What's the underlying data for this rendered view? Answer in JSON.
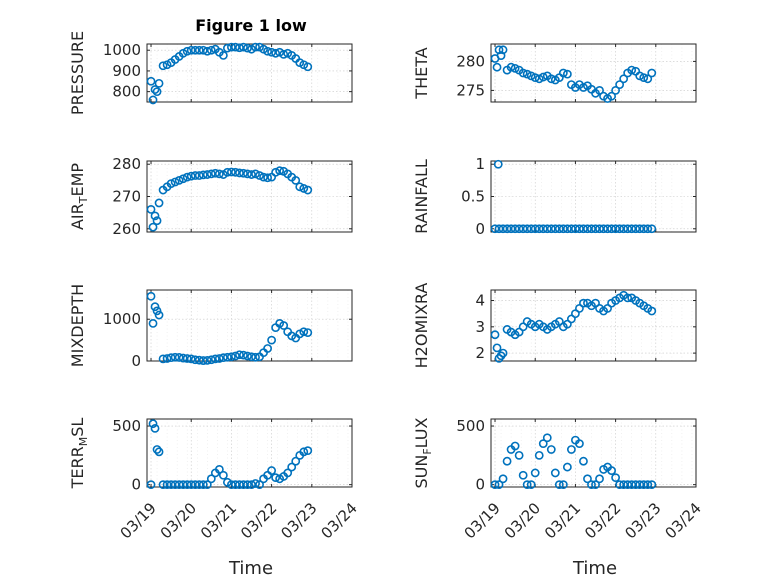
{
  "figure": {
    "title": "Figure 1 low",
    "xlabel": "Time"
  },
  "chart_data": [
    {
      "id": "pressure",
      "type": "scatter",
      "ylabel": "PRESSURE",
      "yticks": [
        "800",
        "900",
        "1000"
      ],
      "ytick_values": [
        800,
        900,
        1000
      ],
      "ylim": [
        750,
        1030
      ],
      "x": [
        0,
        0.05,
        0.1,
        0.15,
        0.2,
        0.3,
        0.4,
        0.5,
        0.6,
        0.7,
        0.8,
        0.9,
        1.0,
        1.1,
        1.2,
        1.3,
        1.4,
        1.5,
        1.6,
        1.7,
        1.8,
        1.9,
        2.0,
        2.1,
        2.2,
        2.3,
        2.4,
        2.5,
        2.6,
        2.7,
        2.8,
        2.9,
        3.0,
        3.1,
        3.2,
        3.3,
        3.4,
        3.5,
        3.6,
        3.7,
        3.8,
        3.9
      ],
      "y": [
        850,
        760,
        810,
        800,
        840,
        925,
        930,
        940,
        955,
        970,
        985,
        995,
        1000,
        1000,
        1000,
        1000,
        995,
        1000,
        1005,
        990,
        975,
        1010,
        1015,
        1015,
        1012,
        1015,
        1010,
        1005,
        1015,
        1015,
        1005,
        995,
        990,
        985,
        990,
        980,
        985,
        975,
        960,
        940,
        930,
        920
      ]
    },
    {
      "id": "theta",
      "type": "scatter",
      "ylabel": "THETA",
      "yticks": [
        "275",
        "280"
      ],
      "ytick_values": [
        275,
        280
      ],
      "ylim": [
        273,
        283
      ],
      "x": [
        0,
        0.05,
        0.1,
        0.15,
        0.2,
        0.3,
        0.4,
        0.5,
        0.6,
        0.7,
        0.8,
        0.9,
        1.0,
        1.1,
        1.2,
        1.3,
        1.4,
        1.5,
        1.6,
        1.7,
        1.8,
        1.9,
        2.0,
        2.1,
        2.2,
        2.3,
        2.4,
        2.5,
        2.6,
        2.7,
        2.8,
        2.9,
        3.0,
        3.1,
        3.2,
        3.3,
        3.4,
        3.5,
        3.6,
        3.7,
        3.8,
        3.9
      ],
      "y": [
        280.5,
        279,
        282,
        281,
        282,
        278.5,
        279,
        278.8,
        278.5,
        278,
        277.8,
        277.5,
        277.2,
        277,
        277.3,
        277.5,
        277,
        276.8,
        277.2,
        278,
        277.8,
        276,
        275.5,
        276,
        275.5,
        275.8,
        275.2,
        274.5,
        275,
        274,
        273.6,
        274,
        275,
        276,
        277,
        278,
        278.5,
        278.3,
        277.5,
        277.2,
        277,
        278
      ]
    },
    {
      "id": "air_temp",
      "type": "scatter",
      "ylabel": "AIRTEMP",
      "ylabel_main": "AIR",
      "ylabel_sub": "T",
      "ylabel_rest": "EMP",
      "yticks": [
        "260",
        "270",
        "280"
      ],
      "ytick_values": [
        260,
        270,
        280
      ],
      "ylim": [
        259,
        281
      ],
      "x": [
        0,
        0.05,
        0.1,
        0.15,
        0.2,
        0.3,
        0.4,
        0.5,
        0.6,
        0.7,
        0.8,
        0.9,
        1.0,
        1.1,
        1.2,
        1.3,
        1.4,
        1.5,
        1.6,
        1.7,
        1.8,
        1.9,
        2.0,
        2.1,
        2.2,
        2.3,
        2.4,
        2.5,
        2.6,
        2.7,
        2.8,
        2.9,
        3.0,
        3.1,
        3.2,
        3.3,
        3.4,
        3.5,
        3.6,
        3.7,
        3.8,
        3.9
      ],
      "y": [
        266,
        260.5,
        264,
        262.5,
        268,
        272,
        273,
        274,
        274.5,
        275,
        275.5,
        276,
        276.3,
        276.5,
        276.5,
        276.7,
        276.8,
        277,
        277.2,
        277,
        276.8,
        277.5,
        277.6,
        277.5,
        277.3,
        277.2,
        277,
        276.8,
        277,
        276.5,
        276,
        275.8,
        276,
        277.5,
        278,
        277.8,
        277,
        276,
        275,
        273,
        272.5,
        272
      ]
    },
    {
      "id": "rainfall",
      "type": "scatter",
      "ylabel": "RAINFALL",
      "yticks": [
        "0",
        "0.5",
        "1"
      ],
      "ytick_values": [
        0,
        0.5,
        1
      ],
      "ylim": [
        -0.05,
        1.05
      ],
      "x": [
        0,
        0.1,
        0.2,
        0.3,
        0.4,
        0.5,
        0.6,
        0.7,
        0.8,
        0.9,
        1.0,
        1.1,
        1.2,
        1.3,
        1.4,
        1.5,
        1.6,
        1.7,
        1.8,
        1.9,
        2.0,
        2.1,
        2.2,
        2.3,
        2.4,
        2.5,
        2.6,
        2.7,
        2.8,
        2.9,
        3.0,
        3.1,
        3.2,
        3.3,
        3.4,
        3.5,
        3.6,
        3.7,
        3.8,
        3.9,
        0.08
      ],
      "y": [
        0,
        0,
        0,
        0,
        0,
        0,
        0,
        0,
        0,
        0,
        0,
        0,
        0,
        0,
        0,
        0,
        0,
        0,
        0,
        0,
        0,
        0,
        0,
        0,
        0,
        0,
        0,
        0,
        0,
        0,
        0,
        0,
        0,
        0,
        0,
        0,
        0,
        0,
        0,
        0,
        1
      ]
    },
    {
      "id": "mixdepth",
      "type": "scatter",
      "ylabel": "MIXDEPTH",
      "yticks": [
        "0",
        "1000"
      ],
      "ytick_values": [
        0,
        1000
      ],
      "ylim": [
        0,
        1700
      ],
      "x": [
        0,
        0.05,
        0.1,
        0.15,
        0.2,
        0.3,
        0.4,
        0.5,
        0.6,
        0.7,
        0.8,
        0.9,
        1.0,
        1.1,
        1.2,
        1.3,
        1.4,
        1.5,
        1.6,
        1.7,
        1.8,
        1.9,
        2.0,
        2.1,
        2.2,
        2.3,
        2.4,
        2.5,
        2.6,
        2.7,
        2.8,
        2.9,
        3.0,
        3.1,
        3.2,
        3.3,
        3.4,
        3.5,
        3.6,
        3.7,
        3.8,
        3.9
      ],
      "y": [
        1550,
        900,
        1300,
        1200,
        1100,
        50,
        60,
        80,
        90,
        85,
        70,
        60,
        50,
        30,
        20,
        10,
        15,
        30,
        50,
        60,
        80,
        90,
        100,
        120,
        150,
        140,
        120,
        100,
        90,
        100,
        200,
        300,
        500,
        800,
        900,
        850,
        700,
        600,
        550,
        650,
        700,
        680
      ]
    },
    {
      "id": "h2omixra",
      "type": "scatter",
      "ylabel": "H2OMIXRA",
      "yticks": [
        "2",
        "3",
        "4"
      ],
      "ytick_values": [
        2,
        3,
        4
      ],
      "ylim": [
        1.7,
        4.4
      ],
      "x": [
        0,
        0.05,
        0.1,
        0.15,
        0.2,
        0.3,
        0.4,
        0.5,
        0.6,
        0.7,
        0.8,
        0.9,
        1.0,
        1.1,
        1.2,
        1.3,
        1.4,
        1.5,
        1.6,
        1.7,
        1.8,
        1.9,
        2.0,
        2.1,
        2.2,
        2.3,
        2.4,
        2.5,
        2.6,
        2.7,
        2.8,
        2.9,
        3.0,
        3.1,
        3.2,
        3.3,
        3.4,
        3.5,
        3.6,
        3.7,
        3.8,
        3.9
      ],
      "y": [
        2.7,
        2.2,
        1.8,
        1.9,
        2.0,
        2.9,
        2.8,
        2.7,
        2.8,
        3.0,
        3.2,
        3.1,
        3.0,
        3.1,
        3.0,
        2.9,
        3.0,
        3.1,
        3.2,
        3.0,
        3.1,
        3.3,
        3.5,
        3.7,
        3.9,
        3.9,
        3.8,
        3.9,
        3.7,
        3.6,
        3.7,
        3.9,
        4.0,
        4.1,
        4.2,
        4.1,
        4.1,
        4.0,
        3.9,
        3.8,
        3.7,
        3.6
      ]
    },
    {
      "id": "terr_msl",
      "type": "scatter",
      "ylabel": "TERRMSL",
      "ylabel_main": "TERR",
      "ylabel_sub": "M",
      "ylabel_rest": "SL",
      "yticks": [
        "0",
        "500"
      ],
      "ytick_values": [
        0,
        500
      ],
      "ylim": [
        -20,
        560
      ],
      "x": [
        0,
        0.05,
        0.1,
        0.15,
        0.2,
        0.3,
        0.4,
        0.5,
        0.6,
        0.7,
        0.8,
        0.9,
        1.0,
        1.1,
        1.2,
        1.3,
        1.4,
        1.5,
        1.6,
        1.7,
        1.8,
        1.9,
        2.0,
        2.1,
        2.2,
        2.3,
        2.4,
        2.5,
        2.6,
        2.7,
        2.8,
        2.9,
        3.0,
        3.1,
        3.2,
        3.3,
        3.4,
        3.5,
        3.6,
        3.7,
        3.8,
        3.9
      ],
      "y": [
        0,
        520,
        480,
        300,
        280,
        0,
        0,
        0,
        0,
        0,
        0,
        0,
        0,
        0,
        0,
        0,
        0,
        50,
        100,
        130,
        80,
        20,
        0,
        0,
        0,
        0,
        0,
        0,
        10,
        0,
        50,
        80,
        120,
        60,
        50,
        70,
        100,
        150,
        200,
        250,
        280,
        290
      ]
    },
    {
      "id": "sun_flux",
      "type": "scatter",
      "ylabel": "SUNFLUX",
      "ylabel_main": "SUN",
      "ylabel_sub": "F",
      "ylabel_rest": "LUX",
      "yticks": [
        "0",
        "500"
      ],
      "ytick_values": [
        0,
        500
      ],
      "ylim": [
        -20,
        560
      ],
      "x": [
        0,
        0.1,
        0.2,
        0.3,
        0.4,
        0.5,
        0.6,
        0.7,
        0.8,
        0.9,
        1.0,
        1.1,
        1.2,
        1.3,
        1.4,
        1.5,
        1.6,
        1.7,
        1.8,
        1.9,
        2.0,
        2.1,
        2.2,
        2.3,
        2.4,
        2.5,
        2.6,
        2.7,
        2.8,
        2.9,
        3.0,
        3.1,
        3.2,
        3.3,
        3.4,
        3.5,
        3.6,
        3.7,
        3.8,
        3.9
      ],
      "y": [
        0,
        0,
        50,
        200,
        300,
        330,
        250,
        80,
        0,
        0,
        100,
        250,
        350,
        400,
        300,
        100,
        0,
        0,
        150,
        300,
        380,
        350,
        200,
        50,
        0,
        0,
        50,
        130,
        150,
        120,
        60,
        0,
        0,
        0,
        0,
        0,
        0,
        0,
        0,
        0
      ]
    }
  ],
  "x_axis": {
    "ticks": [
      "03/19",
      "03/20",
      "03/21",
      "03/22",
      "03/23",
      "03/24"
    ],
    "tick_values": [
      0,
      1,
      2,
      3,
      4,
      5
    ],
    "xlim": [
      -0.1,
      5
    ]
  }
}
